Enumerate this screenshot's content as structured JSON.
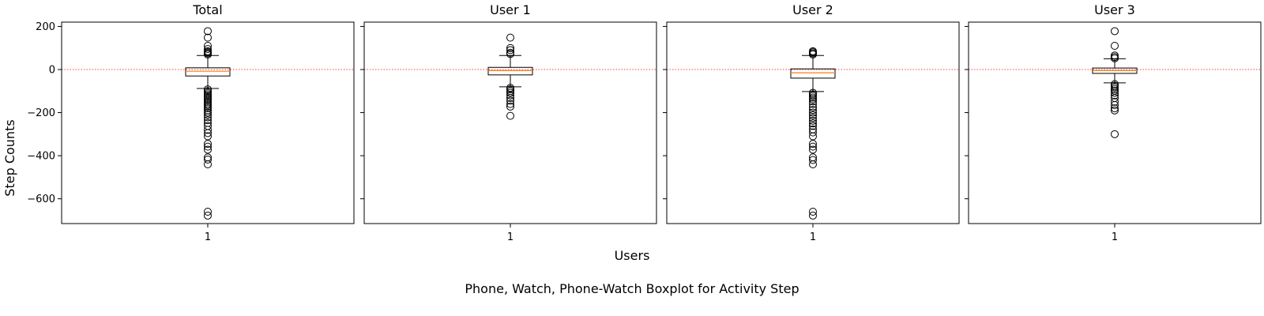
{
  "figure": {
    "title": "Phone, Watch, Phone-Watch Boxplot for Activity Step",
    "xlabel": "Users",
    "ylabel": "Step Counts"
  },
  "chart_data": [
    {
      "type": "box",
      "title": "Total",
      "categories": [
        "1"
      ],
      "ylim": [
        -715,
        220
      ],
      "yticks": [
        200,
        0,
        -200,
        -400,
        -600
      ],
      "reference_line": {
        "y": 0,
        "color": "#ff0000",
        "style": "dotted"
      },
      "box": {
        "whisker_high": 65,
        "q3": 8,
        "median": -8,
        "q1": -30,
        "whisker_low": -88
      },
      "outliers": [
        178,
        148,
        110,
        95,
        85,
        80,
        75,
        70,
        -92,
        -100,
        -108,
        -115,
        -122,
        -128,
        -135,
        -142,
        -150,
        -158,
        -165,
        -172,
        -180,
        -190,
        -200,
        -210,
        -222,
        -235,
        -248,
        -262,
        -280,
        -295,
        -310,
        -345,
        -358,
        -372,
        -408,
        -418,
        -440,
        -660,
        -678
      ]
    },
    {
      "type": "box",
      "title": "User 1",
      "categories": [
        "1"
      ],
      "ylim": [
        -715,
        220
      ],
      "yticks": [
        200,
        0,
        -200,
        -400,
        -600
      ],
      "reference_line": {
        "y": 0,
        "color": "#ff0000",
        "style": "dotted"
      },
      "box": {
        "whisker_high": 65,
        "q3": 10,
        "median": -5,
        "q1": -25,
        "whisker_low": -80
      },
      "outliers": [
        148,
        100,
        90,
        78,
        72,
        -85,
        -92,
        -100,
        -108,
        -120,
        -132,
        -145,
        -160,
        -172,
        -215
      ]
    },
    {
      "type": "box",
      "title": "User 2",
      "categories": [
        "1"
      ],
      "ylim": [
        -715,
        220
      ],
      "yticks": [
        200,
        0,
        -200,
        -400,
        -600
      ],
      "reference_line": {
        "y": 0,
        "color": "#ff0000",
        "style": "dotted"
      },
      "box": {
        "whisker_high": 65,
        "q3": 3,
        "median": -15,
        "q1": -40,
        "whisker_low": -102
      },
      "outliers": [
        85,
        80,
        75,
        70,
        -108,
        -115,
        -122,
        -130,
        -138,
        -148,
        -160,
        -175,
        -188,
        -200,
        -212,
        -225,
        -238,
        -250,
        -262,
        -278,
        -292,
        -310,
        -345,
        -358,
        -372,
        -408,
        -420,
        -440,
        -660,
        -678
      ]
    },
    {
      "type": "box",
      "title": "User 3",
      "categories": [
        "1"
      ],
      "ylim": [
        -715,
        220
      ],
      "yticks": [
        200,
        0,
        -200,
        -400,
        -600
      ],
      "reference_line": {
        "y": 0,
        "color": "#ff0000",
        "style": "dotted"
      },
      "box": {
        "whisker_high": 50,
        "q3": 7,
        "median": -5,
        "q1": -18,
        "whisker_low": -62
      },
      "outliers": [
        178,
        110,
        65,
        58,
        52,
        -68,
        -75,
        -82,
        -90,
        -98,
        -108,
        -120,
        -132,
        -150,
        -165,
        -180,
        -190,
        -300
      ]
    }
  ]
}
